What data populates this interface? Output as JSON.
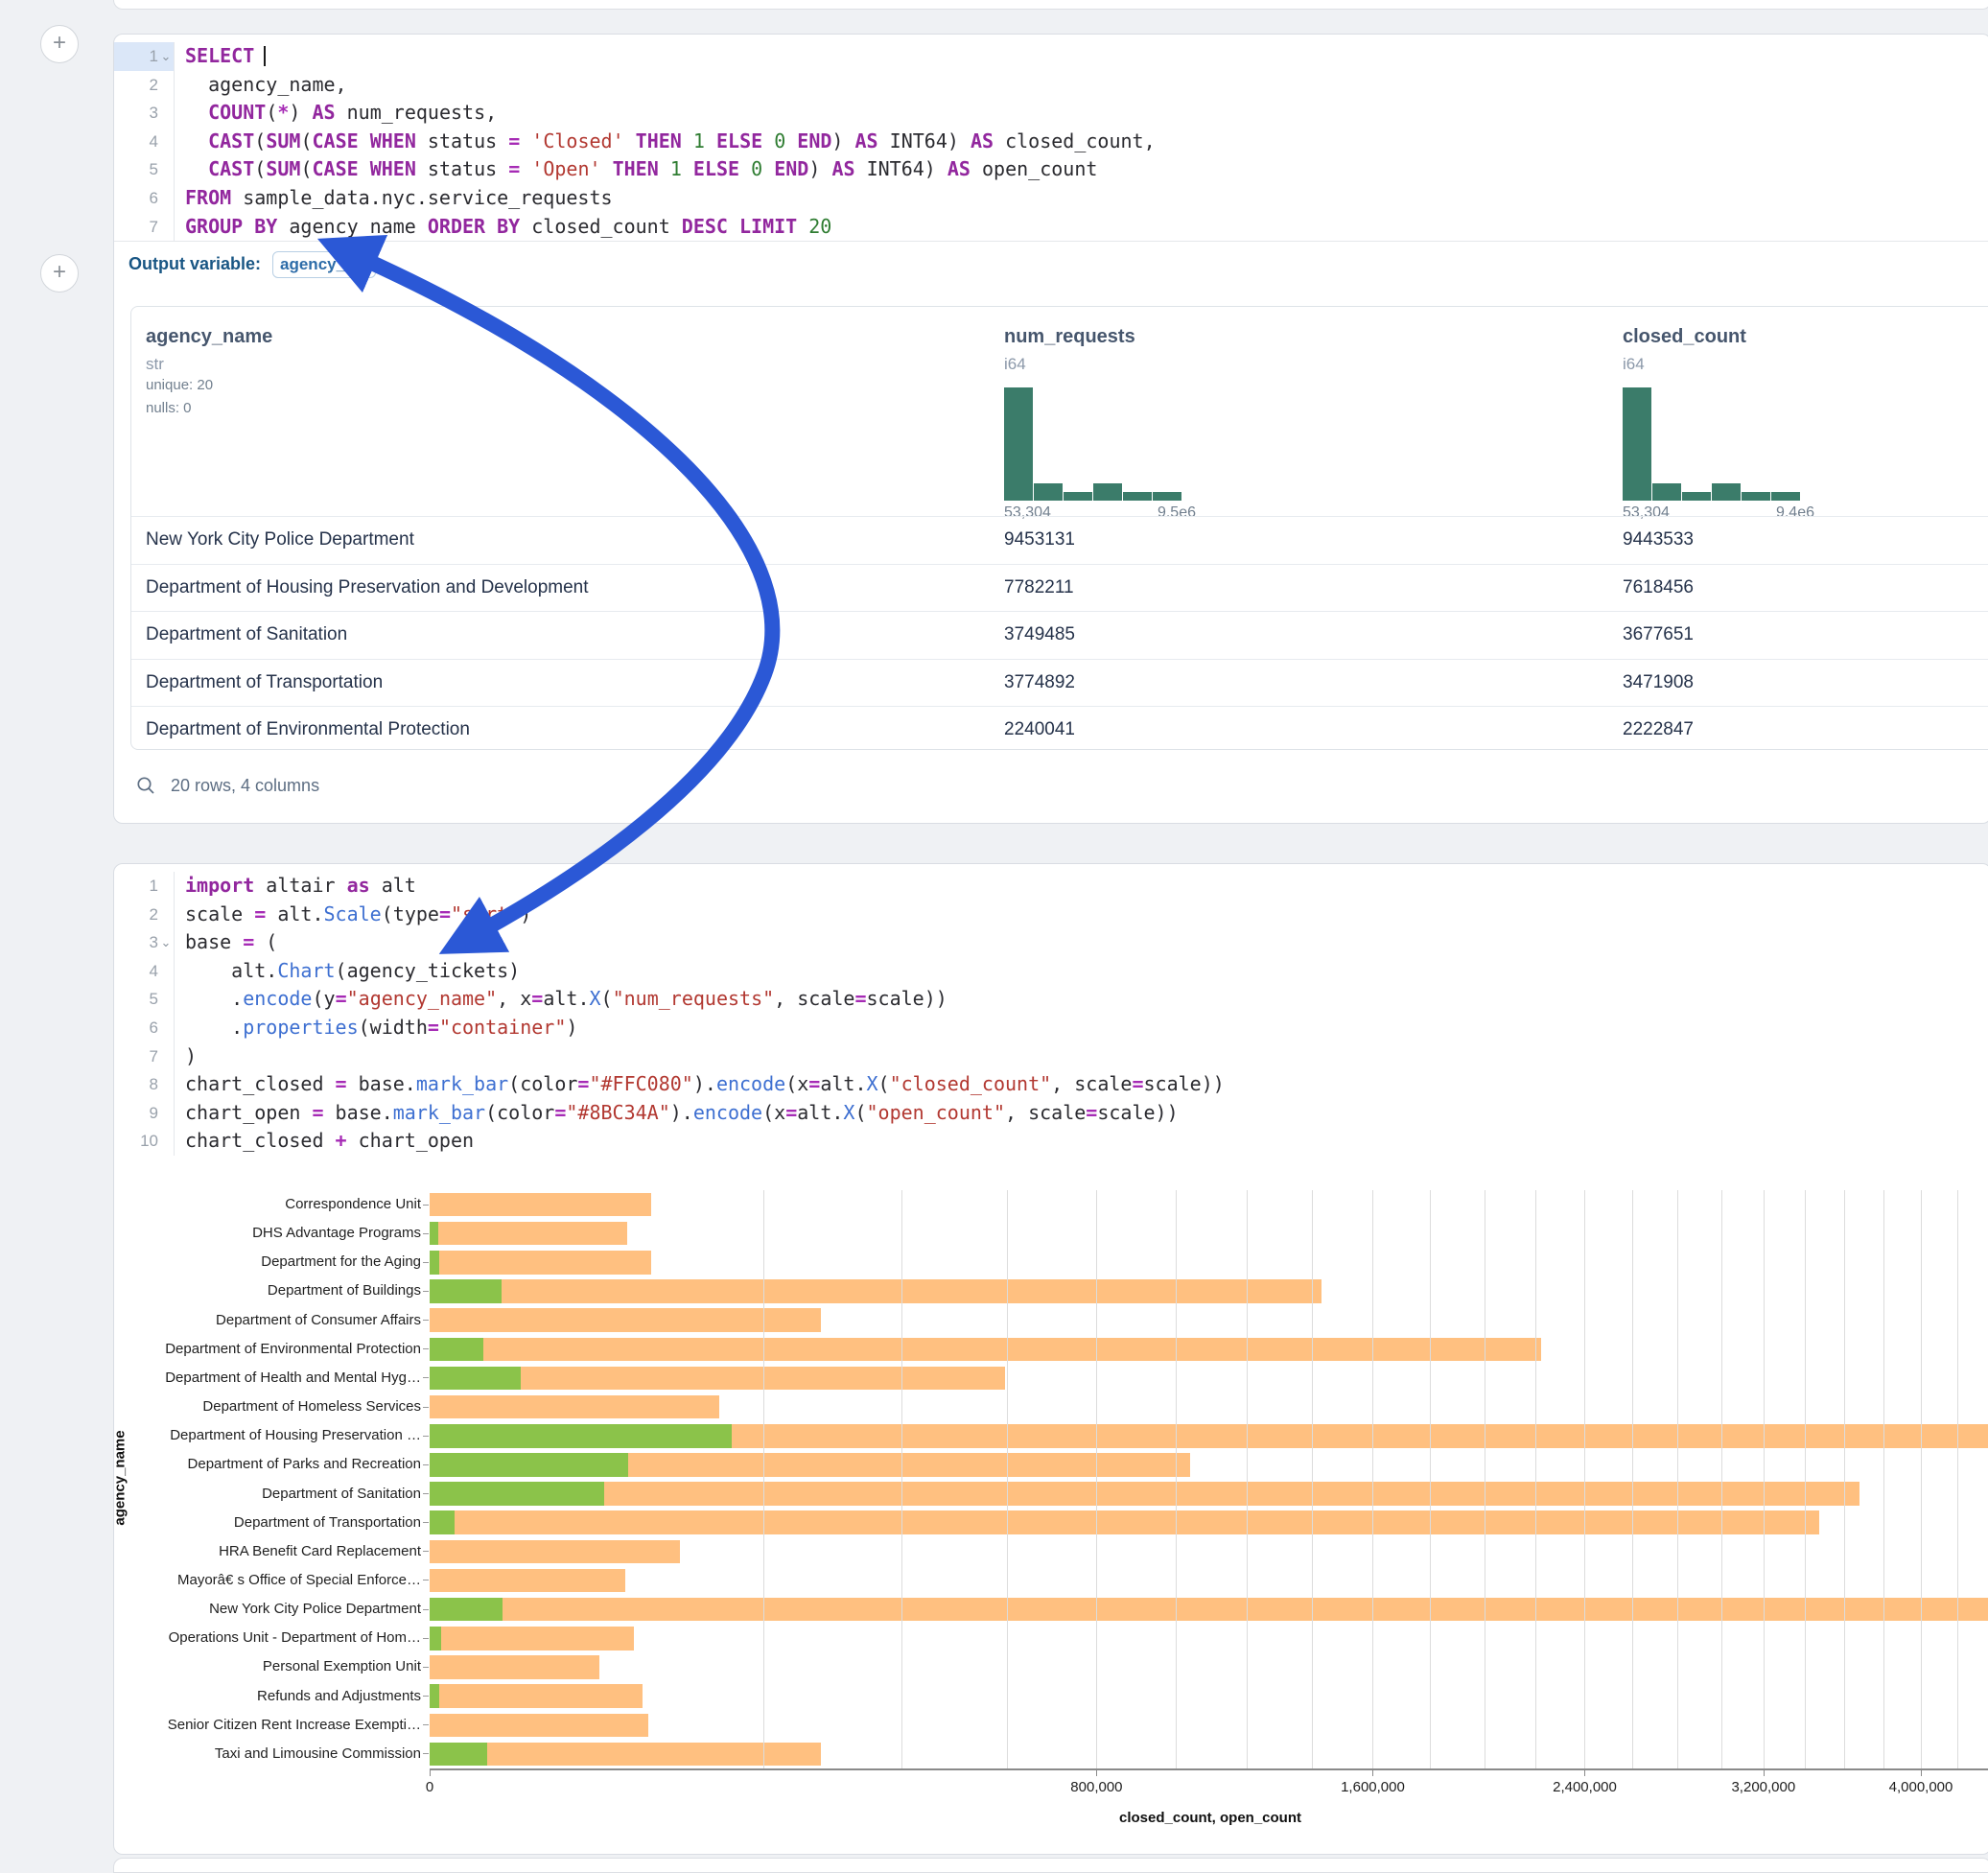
{
  "ui": {
    "add_button_label": "+",
    "arrow_color": "#2b58d6",
    "accent_colors": {
      "keyword": "#92279e",
      "string": "#b23831",
      "number": "#2f7d32",
      "function": "#3d6fd1",
      "histogram": "#3b7c6a"
    }
  },
  "sql_cell": {
    "output_variable_label": "Output variable:",
    "output_variable_value": "agency_tickets",
    "lines": [
      {
        "n": "1",
        "hl": true,
        "chev": true,
        "t": [
          [
            "k",
            "SELECT"
          ],
          [
            "cur",
            ""
          ]
        ]
      },
      {
        "n": "2",
        "t": [
          [
            "p",
            "  agency_name,"
          ]
        ]
      },
      {
        "n": "3",
        "t": [
          [
            "p",
            "  "
          ],
          [
            "k",
            "COUNT"
          ],
          [
            "p",
            "("
          ],
          [
            "o",
            "*"
          ],
          [
            "p",
            ") "
          ],
          [
            "k",
            "AS"
          ],
          [
            "p",
            " num_requests,"
          ]
        ]
      },
      {
        "n": "4",
        "t": [
          [
            "p",
            "  "
          ],
          [
            "k",
            "CAST"
          ],
          [
            "p",
            "("
          ],
          [
            "k",
            "SUM"
          ],
          [
            "p",
            "("
          ],
          [
            "k",
            "CASE"
          ],
          [
            "p",
            " "
          ],
          [
            "k",
            "WHEN"
          ],
          [
            "p",
            " status "
          ],
          [
            "o",
            "="
          ],
          [
            "p",
            " "
          ],
          [
            "s",
            "'Closed'"
          ],
          [
            "p",
            " "
          ],
          [
            "k",
            "THEN"
          ],
          [
            "p",
            " "
          ],
          [
            "n2",
            "1"
          ],
          [
            "p",
            " "
          ],
          [
            "k",
            "ELSE"
          ],
          [
            "p",
            " "
          ],
          [
            "n2",
            "0"
          ],
          [
            "p",
            " "
          ],
          [
            "k",
            "END"
          ],
          [
            "p",
            ") "
          ],
          [
            "k",
            "AS"
          ],
          [
            "p",
            " INT64) "
          ],
          [
            "k",
            "AS"
          ],
          [
            "p",
            " closed_count,"
          ]
        ]
      },
      {
        "n": "5",
        "t": [
          [
            "p",
            "  "
          ],
          [
            "k",
            "CAST"
          ],
          [
            "p",
            "("
          ],
          [
            "k",
            "SUM"
          ],
          [
            "p",
            "("
          ],
          [
            "k",
            "CASE"
          ],
          [
            "p",
            " "
          ],
          [
            "k",
            "WHEN"
          ],
          [
            "p",
            " status "
          ],
          [
            "o",
            "="
          ],
          [
            "p",
            " "
          ],
          [
            "s",
            "'Open'"
          ],
          [
            "p",
            " "
          ],
          [
            "k",
            "THEN"
          ],
          [
            "p",
            " "
          ],
          [
            "n2",
            "1"
          ],
          [
            "p",
            " "
          ],
          [
            "k",
            "ELSE"
          ],
          [
            "p",
            " "
          ],
          [
            "n2",
            "0"
          ],
          [
            "p",
            " "
          ],
          [
            "k",
            "END"
          ],
          [
            "p",
            ") "
          ],
          [
            "k",
            "AS"
          ],
          [
            "p",
            " INT64) "
          ],
          [
            "k",
            "AS"
          ],
          [
            "p",
            " open_count"
          ]
        ]
      },
      {
        "n": "6",
        "t": [
          [
            "k",
            "FROM"
          ],
          [
            "p",
            " sample_data.nyc.service_requests"
          ]
        ]
      },
      {
        "n": "7",
        "t": [
          [
            "k",
            "GROUP BY"
          ],
          [
            "p",
            " agency_name "
          ],
          [
            "k",
            "ORDER BY"
          ],
          [
            "p",
            " closed_count "
          ],
          [
            "k",
            "DESC"
          ],
          [
            "p",
            " "
          ],
          [
            "k",
            "LIMIT"
          ],
          [
            "p",
            " "
          ],
          [
            "n2",
            "20"
          ]
        ]
      }
    ]
  },
  "table": {
    "footer": "20 rows, 4 columns",
    "columns": [
      {
        "name": "agency_name",
        "type": "str",
        "stats": [
          "unique: 20",
          "nulls: 0"
        ]
      },
      {
        "name": "num_requests",
        "type": "i64",
        "hist": {
          "bars": [
            13,
            2,
            1,
            2,
            1,
            1
          ],
          "min_label": "53,304",
          "max_label": "9.5e6"
        }
      },
      {
        "name": "closed_count",
        "type": "i64",
        "hist": {
          "bars": [
            13,
            2,
            1,
            2,
            1,
            1
          ],
          "min_label": "53,304",
          "max_label": "9.4e6"
        }
      }
    ],
    "rows": [
      [
        "New York City Police Department",
        "9453131",
        "9443533"
      ],
      [
        "Department of Housing Preservation and Development",
        "7782211",
        "7618456"
      ],
      [
        "Department of Sanitation",
        "3749485",
        "3677651"
      ],
      [
        "Department of Transportation",
        "3774892",
        "3471908"
      ],
      [
        "Department of Environmental Protection",
        "2240041",
        "2222847"
      ]
    ]
  },
  "python_cell": {
    "lines": [
      {
        "n": "1",
        "t": [
          [
            "k",
            "import"
          ],
          [
            "p",
            " altair "
          ],
          [
            "k",
            "as"
          ],
          [
            "p",
            " alt"
          ]
        ]
      },
      {
        "n": "2",
        "t": [
          [
            "p",
            "scale "
          ],
          [
            "o",
            "="
          ],
          [
            "p",
            " alt."
          ],
          [
            "f",
            "Scale"
          ],
          [
            "p",
            "(type"
          ],
          [
            "o",
            "="
          ],
          [
            "s",
            "\"sqrt\""
          ],
          [
            "p",
            ")"
          ]
        ]
      },
      {
        "n": "3",
        "chev": true,
        "t": [
          [
            "p",
            "base "
          ],
          [
            "o",
            "="
          ],
          [
            "p",
            " ("
          ]
        ]
      },
      {
        "n": "4",
        "t": [
          [
            "p",
            "    alt."
          ],
          [
            "f",
            "Chart"
          ],
          [
            "p",
            "(agency_tickets)"
          ]
        ]
      },
      {
        "n": "5",
        "t": [
          [
            "p",
            "    ."
          ],
          [
            "f",
            "encode"
          ],
          [
            "p",
            "(y"
          ],
          [
            "o",
            "="
          ],
          [
            "s",
            "\"agency_name\""
          ],
          [
            "p",
            ", x"
          ],
          [
            "o",
            "="
          ],
          [
            "p",
            "alt."
          ],
          [
            "f",
            "X"
          ],
          [
            "p",
            "("
          ],
          [
            "s",
            "\"num_requests\""
          ],
          [
            "p",
            ", scale"
          ],
          [
            "o",
            "="
          ],
          [
            "p",
            "scale))"
          ]
        ]
      },
      {
        "n": "6",
        "t": [
          [
            "p",
            "    ."
          ],
          [
            "f",
            "properties"
          ],
          [
            "p",
            "(width"
          ],
          [
            "o",
            "="
          ],
          [
            "s",
            "\"container\""
          ],
          [
            "p",
            ")"
          ]
        ]
      },
      {
        "n": "7",
        "t": [
          [
            "p",
            ")"
          ]
        ]
      },
      {
        "n": "8",
        "t": [
          [
            "p",
            "chart_closed "
          ],
          [
            "o",
            "="
          ],
          [
            "p",
            " base."
          ],
          [
            "f",
            "mark_bar"
          ],
          [
            "p",
            "(color"
          ],
          [
            "o",
            "="
          ],
          [
            "s",
            "\"#FFC080\""
          ],
          [
            "p",
            ")."
          ],
          [
            "f",
            "encode"
          ],
          [
            "p",
            "(x"
          ],
          [
            "o",
            "="
          ],
          [
            "p",
            "alt."
          ],
          [
            "f",
            "X"
          ],
          [
            "p",
            "("
          ],
          [
            "s",
            "\"closed_count\""
          ],
          [
            "p",
            ", scale"
          ],
          [
            "o",
            "="
          ],
          [
            "p",
            "scale))"
          ]
        ]
      },
      {
        "n": "9",
        "t": [
          [
            "p",
            "chart_open "
          ],
          [
            "o",
            "="
          ],
          [
            "p",
            " base."
          ],
          [
            "f",
            "mark_bar"
          ],
          [
            "p",
            "(color"
          ],
          [
            "o",
            "="
          ],
          [
            "s",
            "\"#8BC34A\""
          ],
          [
            "p",
            ")."
          ],
          [
            "f",
            "encode"
          ],
          [
            "p",
            "(x"
          ],
          [
            "o",
            "="
          ],
          [
            "p",
            "alt."
          ],
          [
            "f",
            "X"
          ],
          [
            "p",
            "("
          ],
          [
            "s",
            "\"open_count\""
          ],
          [
            "p",
            ", scale"
          ],
          [
            "o",
            "="
          ],
          [
            "p",
            "scale))"
          ]
        ]
      },
      {
        "n": "10",
        "t": [
          [
            "p",
            "chart_closed "
          ],
          [
            "o",
            "+"
          ],
          [
            "p",
            " chart_open"
          ]
        ]
      }
    ]
  },
  "chart_data": {
    "type": "bar",
    "orientation": "horizontal",
    "scale_type": "sqrt",
    "xlabel": "closed_count, open_count",
    "ylabel": "agency_name",
    "grid": true,
    "gridline_step": 200000,
    "x_axis_reference_max": 4000000,
    "x_ticks": [
      {
        "value": 0,
        "label": "0"
      },
      {
        "value": 800000,
        "label": "800,000"
      },
      {
        "value": 1600000,
        "label": "1,600,000"
      },
      {
        "value": 2400000,
        "label": "2,400,000"
      },
      {
        "value": 3200000,
        "label": "3,200,000"
      },
      {
        "value": 4000000,
        "label": "4,000,000"
      }
    ],
    "categories": [
      "Correspondence Unit",
      "DHS Advantage Programs",
      "Department for the Aging",
      "Department of Buildings",
      "Department of Consumer Affairs",
      "Department of Environmental Protection",
      "Department of Health and Mental Hyg…",
      "Department of Homeless Services",
      "Department of Housing Preservation …",
      "Department of Parks and Recreation",
      "Department of Sanitation",
      "Department of Transportation",
      "HRA Benefit Card Replacement",
      "Mayorâ€ s Office of Special Enforce…",
      "New York City Police Department",
      "Operations Unit - Department of Hom…",
      "Personal Exemption Unit",
      "Refunds and Adjustments",
      "Senior Citizen Rent Increase Exempti…",
      "Taxi and Limousine Commission"
    ],
    "series": [
      {
        "name": "closed_count",
        "color": "#FFC080",
        "values": [
          88000,
          70000,
          88000,
          1430000,
          275000,
          2222847,
          595000,
          151000,
          7618456,
          1040000,
          3677651,
          3471908,
          113000,
          69000,
          9443533,
          75000,
          52000,
          81500,
          86000,
          275000
        ]
      },
      {
        "name": "open_count",
        "color": "#8BC34A",
        "values": [
          0,
          120,
          150,
          9300,
          0,
          5200,
          15000,
          0,
          163755,
          71000,
          55000,
          1100,
          0,
          0,
          9598,
          250,
          0,
          170,
          0,
          6000
        ]
      }
    ]
  }
}
